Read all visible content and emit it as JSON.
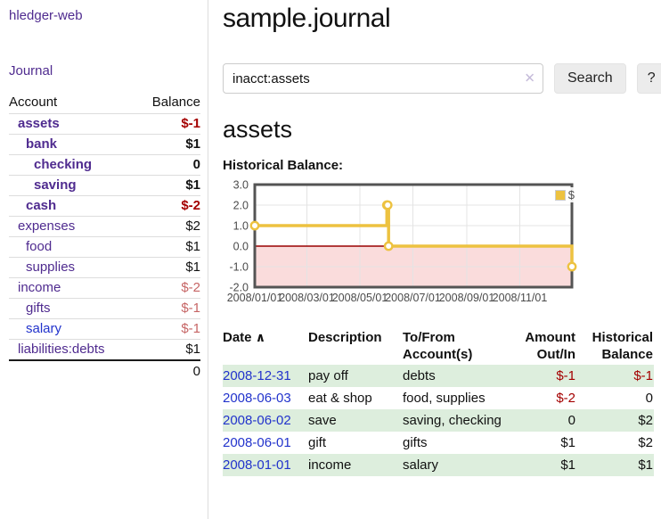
{
  "sidebar": {
    "brand": "hledger-web",
    "nav": {
      "journal": "Journal"
    },
    "table": {
      "account_header": "Account",
      "balance_header": "Balance"
    },
    "accounts": [
      {
        "name": "assets",
        "indent": 0,
        "bold": true,
        "link": "purple",
        "balance": "$-1",
        "balance_class": "neg-strong"
      },
      {
        "name": "bank",
        "indent": 1,
        "bold": true,
        "link": "purple",
        "balance": "$1",
        "balance_class": ""
      },
      {
        "name": "checking",
        "indent": 2,
        "bold": true,
        "link": "purple",
        "balance": "0",
        "balance_class": ""
      },
      {
        "name": "saving",
        "indent": 2,
        "bold": true,
        "link": "purple",
        "balance": "$1",
        "balance_class": ""
      },
      {
        "name": "cash",
        "indent": 1,
        "bold": true,
        "link": "purple",
        "balance": "$-2",
        "balance_class": "neg-strong"
      },
      {
        "name": "expenses",
        "indent": 0,
        "bold": false,
        "link": "purple",
        "balance": "$2",
        "balance_class": ""
      },
      {
        "name": "food",
        "indent": 1,
        "bold": false,
        "link": "purple",
        "balance": "$1",
        "balance_class": ""
      },
      {
        "name": "supplies",
        "indent": 1,
        "bold": false,
        "link": "purple",
        "balance": "$1",
        "balance_class": ""
      },
      {
        "name": "income",
        "indent": 0,
        "bold": false,
        "link": "purple",
        "balance": "$-2",
        "balance_class": "neg-soft"
      },
      {
        "name": "gifts",
        "indent": 1,
        "bold": false,
        "link": "purple",
        "balance": "$-1",
        "balance_class": "neg-soft"
      },
      {
        "name": "salary",
        "indent": 1,
        "bold": false,
        "link": "blue",
        "balance": "$-1",
        "balance_class": "neg-soft"
      },
      {
        "name": "liabilities:debts",
        "indent": 0,
        "bold": false,
        "link": "purple",
        "balance": "$1",
        "balance_class": ""
      }
    ],
    "total": "0"
  },
  "main": {
    "title": "sample.journal",
    "search": {
      "query": "inacct:assets",
      "clear_icon": "✕",
      "button": "Search",
      "help_button": "?"
    },
    "account_heading": "assets",
    "chart_label": "Historical Balance:"
  },
  "chart_data": {
    "type": "line",
    "title": "Historical Balance:",
    "step": true,
    "series": [
      {
        "name": "$",
        "color": "#EDC240",
        "points": [
          [
            "2008-01-01",
            1
          ],
          [
            "2008-06-01",
            2
          ],
          [
            "2008-06-02",
            2
          ],
          [
            "2008-06-03",
            0
          ],
          [
            "2008-12-31",
            -1
          ]
        ]
      }
    ],
    "x_range": [
      "2008-01-01",
      "2008-12-31"
    ],
    "x_ticks": [
      "2008/01/01",
      "2008/03/01",
      "2008/05/01",
      "2008/07/01",
      "2008/09/01",
      "2008/11/01"
    ],
    "y_ticks": [
      3.0,
      2.0,
      1.0,
      0.0,
      -1.0,
      -2.0
    ],
    "ylim": [
      -2,
      3
    ],
    "grid": true,
    "legend_position": "top-right",
    "grid_color": "#e4e4e4",
    "border_color": "#545454",
    "tick_color": "#4a4a4a",
    "zero_line_color": "#990000",
    "negative_region_color": "#fadcdc",
    "marker_fill": "#ffffff"
  },
  "transactions": {
    "sort_icon": "∧",
    "columns": [
      {
        "key": "date",
        "line1": "Date",
        "line2": "",
        "align": "left",
        "sorted": true
      },
      {
        "key": "description",
        "line1": "Description",
        "line2": "",
        "align": "left"
      },
      {
        "key": "accounts",
        "line1": "To/From",
        "line2": "Account(s)",
        "align": "left"
      },
      {
        "key": "amount",
        "line1": "Amount",
        "line2": "Out/In",
        "align": "right"
      },
      {
        "key": "balance",
        "line1": "Historical",
        "line2": "Balance",
        "align": "right"
      }
    ],
    "rows": [
      {
        "date": "2008-12-31",
        "description": "pay off",
        "accounts": "debts",
        "amount": "$-1",
        "amount_neg": true,
        "balance": "$-1",
        "balance_neg": true
      },
      {
        "date": "2008-06-03",
        "description": "eat & shop",
        "accounts": "food, supplies",
        "amount": "$-2",
        "amount_neg": true,
        "balance": "0",
        "balance_neg": false
      },
      {
        "date": "2008-06-02",
        "description": "save",
        "accounts": "saving, checking",
        "amount": "0",
        "amount_neg": false,
        "balance": "$2",
        "balance_neg": false
      },
      {
        "date": "2008-06-01",
        "description": "gift",
        "accounts": "gifts",
        "amount": "$1",
        "amount_neg": false,
        "balance": "$2",
        "balance_neg": false
      },
      {
        "date": "2008-01-01",
        "description": "income",
        "accounts": "salary",
        "amount": "$1",
        "amount_neg": false,
        "balance": "$1",
        "balance_neg": false
      }
    ]
  },
  "colors": {
    "link_purple": "#4f2b8f",
    "link_blue": "#2233cc",
    "negative_strong": "#a40000",
    "negative_soft": "#c66565",
    "row_stripe_green": "#ddeedd",
    "chart_line": "#EDC240",
    "button_bg": "#ececec"
  }
}
